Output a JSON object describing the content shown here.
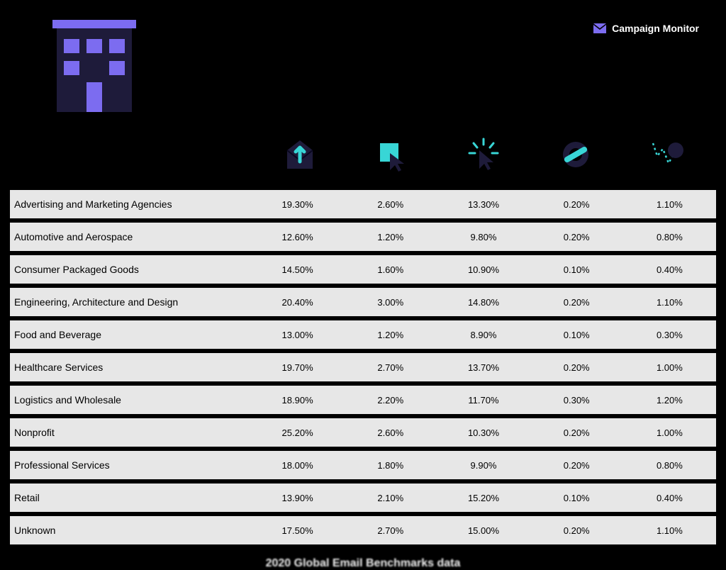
{
  "brand": "Campaign Monitor",
  "footer": "2020 Global Email Benchmarks data",
  "colors": {
    "background": "#000000",
    "row_bg": "#e7e7e7",
    "accent_purple": "#7c6cf0",
    "accent_dark": "#1e1b3a",
    "accent_cyan": "#38d6d6",
    "text_row": "#000000",
    "text_footer": "#ffffff"
  },
  "table": {
    "type": "table",
    "columns": [
      "industry",
      "open_rate",
      "click_rate",
      "click_to_open",
      "bounce",
      "unsubscribe"
    ],
    "column_icons": [
      "open-envelope-icon",
      "cursor-square-icon",
      "click-sparkle-icon",
      "no-symbol-icon",
      "bounce-ball-icon"
    ],
    "rows": [
      {
        "label": "Advertising and Marketing Agencies",
        "values": [
          "19.30%",
          "2.60%",
          "13.30%",
          "0.20%",
          "1.10%"
        ]
      },
      {
        "label": "Automotive and Aerospace",
        "values": [
          "12.60%",
          "1.20%",
          "9.80%",
          "0.20%",
          "0.80%"
        ]
      },
      {
        "label": "Consumer Packaged Goods",
        "values": [
          "14.50%",
          "1.60%",
          "10.90%",
          "0.10%",
          "0.40%"
        ]
      },
      {
        "label": "Engineering, Architecture and Design",
        "values": [
          "20.40%",
          "3.00%",
          "14.80%",
          "0.20%",
          "1.10%"
        ]
      },
      {
        "label": "Food and Beverage",
        "values": [
          "13.00%",
          "1.20%",
          "8.90%",
          "0.10%",
          "0.30%"
        ]
      },
      {
        "label": "Healthcare Services",
        "values": [
          "19.70%",
          "2.70%",
          "13.70%",
          "0.20%",
          "1.00%"
        ]
      },
      {
        "label": "Logistics and Wholesale",
        "values": [
          "18.90%",
          "2.20%",
          "11.70%",
          "0.30%",
          "1.20%"
        ]
      },
      {
        "label": "Nonprofit",
        "values": [
          "25.20%",
          "2.60%",
          "10.30%",
          "0.20%",
          "1.00%"
        ]
      },
      {
        "label": "Professional Services",
        "values": [
          "18.00%",
          "1.80%",
          "9.90%",
          "0.20%",
          "0.80%"
        ]
      },
      {
        "label": "Retail",
        "values": [
          "13.90%",
          "2.10%",
          "15.20%",
          "0.10%",
          "0.40%"
        ]
      },
      {
        "label": "Unknown",
        "values": [
          "17.50%",
          "2.70%",
          "15.00%",
          "0.20%",
          "1.10%"
        ]
      }
    ]
  }
}
